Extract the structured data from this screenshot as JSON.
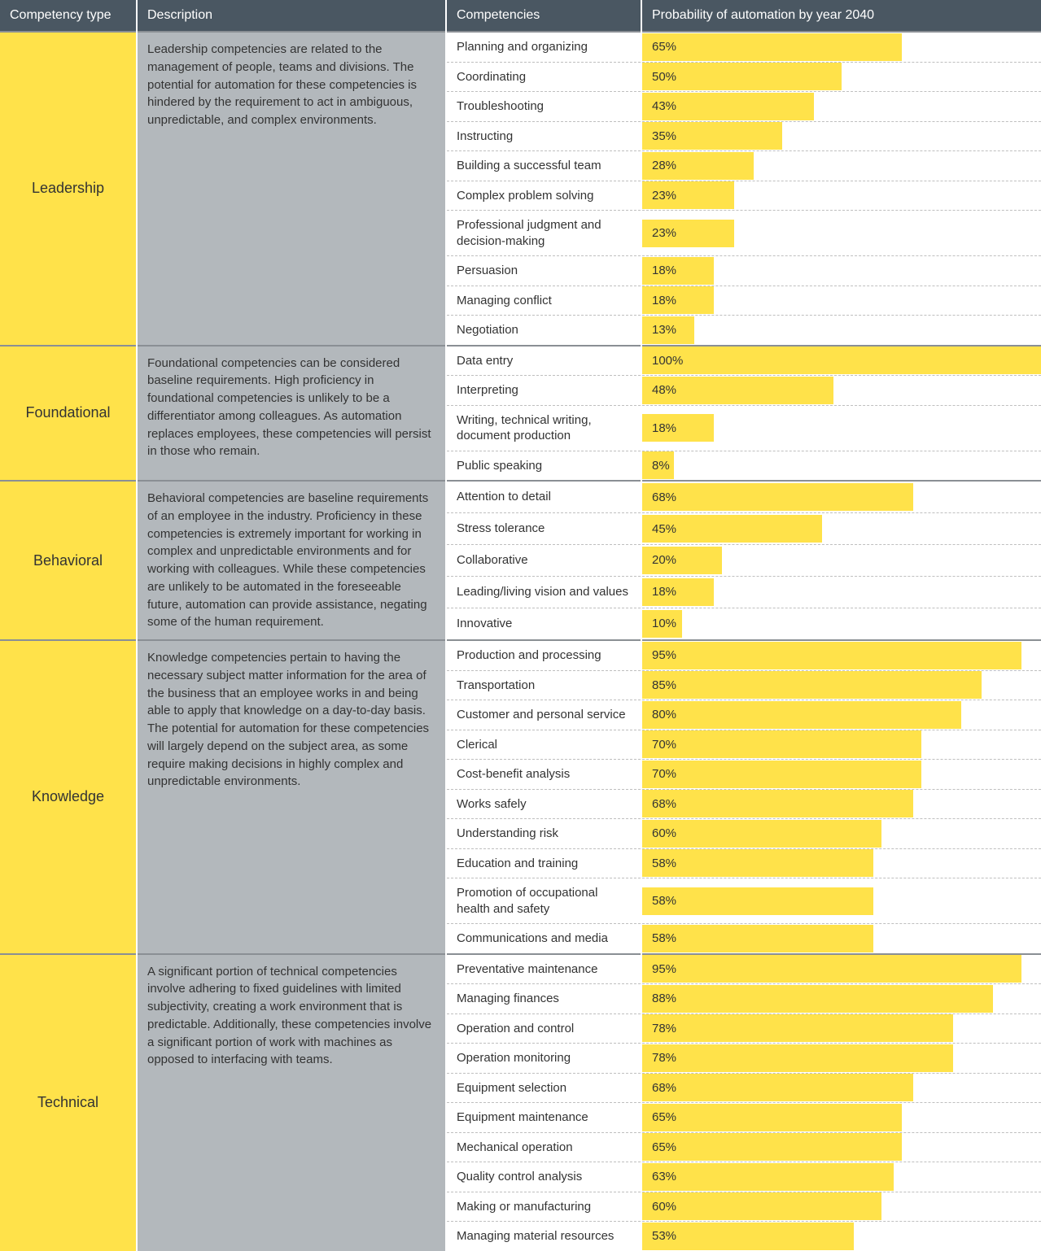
{
  "colors": {
    "header_bg": "#4a5762",
    "header_text": "#ffffff",
    "type_bg": "#ffe24a",
    "desc_bg": "#b3b8bc",
    "bar_fill": "#ffe24a",
    "row_divider": "#bfbfbf",
    "group_divider": "#8a8f94",
    "text": "#333333",
    "cell_bg": "#ffffff"
  },
  "typography": {
    "header_fontsize": 16,
    "type_fontsize": 18,
    "body_fontsize": 15
  },
  "layout": {
    "col_type_width": 168,
    "col_desc_width": 380,
    "col_comp_width": 240,
    "col_prob_width": 491,
    "row_divider_style": "dashed",
    "group_divider_style": "solid"
  },
  "headers": {
    "type": "Competency type",
    "desc": "Description",
    "comp": "Competencies",
    "prob": "Probability of automation by year 2040"
  },
  "groups": [
    {
      "type": "Leadership",
      "description": "Leadership competencies are related to the management of people, teams and divisions. The potential for automation for these competencies is hindered by the requirement to act in ambiguous, unpredictable, and complex environments.",
      "rows": [
        {
          "label": "Planning and organizing",
          "pct": 65
        },
        {
          "label": "Coordinating",
          "pct": 50
        },
        {
          "label": "Troubleshooting",
          "pct": 43
        },
        {
          "label": "Instructing",
          "pct": 35
        },
        {
          "label": "Building a successful team",
          "pct": 28
        },
        {
          "label": "Complex problem solving",
          "pct": 23
        },
        {
          "label": "Professional judgment and decision-making",
          "pct": 23
        },
        {
          "label": "Persuasion",
          "pct": 18
        },
        {
          "label": "Managing conflict",
          "pct": 18
        },
        {
          "label": "Negotiation",
          "pct": 13
        }
      ]
    },
    {
      "type": "Foundational",
      "description": "Foundational competencies can be considered baseline requirements. High proficiency in foundational competencies is unlikely to be a differentiator among colleagues. As automation replaces employees, these competencies will persist in those who remain.",
      "rows": [
        {
          "label": "Data entry",
          "pct": 100
        },
        {
          "label": "Interpreting",
          "pct": 48
        },
        {
          "label": "Writing, technical writing, document production",
          "pct": 18
        },
        {
          "label": "Public speaking",
          "pct": 8
        }
      ]
    },
    {
      "type": "Behavioral",
      "description": "Behavioral competencies are baseline requirements of an employee in the industry. Proficiency in these competencies is extremely important for working in complex and unpredictable environments and for working with colleagues. While these competencies are unlikely to be automated in the foreseeable future, automation can provide assistance, negating some of the human requirement.",
      "rows": [
        {
          "label": "Attention to detail",
          "pct": 68
        },
        {
          "label": "Stress tolerance",
          "pct": 45
        },
        {
          "label": "Collaborative",
          "pct": 20
        },
        {
          "label": "Leading/living vision and values",
          "pct": 18
        },
        {
          "label": "Innovative",
          "pct": 10
        }
      ]
    },
    {
      "type": "Knowledge",
      "description": "Knowledge competencies pertain to having the necessary subject matter information for the area of the business that an employee works in and being able to apply that knowledge on a day-to-day basis. The potential for automation for these competencies will largely depend on the subject area, as some require making decisions in highly complex and unpredictable environments.",
      "rows": [
        {
          "label": "Production and processing",
          "pct": 95
        },
        {
          "label": "Transportation",
          "pct": 85
        },
        {
          "label": "Customer and personal service",
          "pct": 80
        },
        {
          "label": "Clerical",
          "pct": 70
        },
        {
          "label": "Cost-benefit analysis",
          "pct": 70
        },
        {
          "label": "Works safely",
          "pct": 68
        },
        {
          "label": "Understanding risk",
          "pct": 60
        },
        {
          "label": "Education and training",
          "pct": 58
        },
        {
          "label": "Promotion of occupational health and safety",
          "pct": 58
        },
        {
          "label": "Communications and media",
          "pct": 58
        }
      ]
    },
    {
      "type": "Technical",
      "description": "A significant portion of technical competencies involve adhering to fixed guidelines with limited subjectivity, creating a work environment that is predictable. Additionally, these competencies involve a significant portion of work with machines as opposed to interfacing with teams.",
      "rows": [
        {
          "label": "Preventative maintenance",
          "pct": 95
        },
        {
          "label": "Managing finances",
          "pct": 88
        },
        {
          "label": "Operation and control",
          "pct": 78
        },
        {
          "label": "Operation monitoring",
          "pct": 78
        },
        {
          "label": "Equipment selection",
          "pct": 68
        },
        {
          "label": "Equipment maintenance",
          "pct": 65
        },
        {
          "label": "Mechanical operation",
          "pct": 65
        },
        {
          "label": "Quality control analysis",
          "pct": 63
        },
        {
          "label": "Making or manufacturing",
          "pct": 60
        },
        {
          "label": "Managing material resources",
          "pct": 53
        }
      ]
    }
  ]
}
